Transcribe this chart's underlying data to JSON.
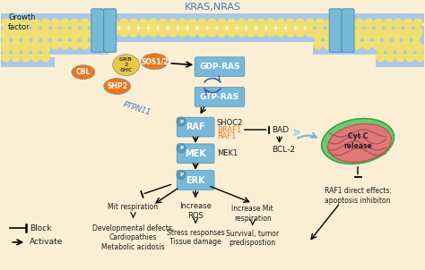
{
  "bg_color": "#faefd4",
  "membrane_color": "#a8c8e8",
  "membrane_yellow": "#f0e070",
  "box_blue": "#78b8d8",
  "orange_node": "#e87820",
  "yellow_node": "#e8c840",
  "text_blue": "#4472c4",
  "text_black": "#1a1a1a",
  "title": "KRAS,NRAS",
  "legend_block": "Block",
  "legend_activate": "Activate",
  "p_circle_color": "#5898b8",
  "mito_green": "#70c870",
  "mito_pink": "#e07878",
  "mito_green_dark": "#40a040",
  "mito_pink_dark": "#b05050",
  "bcl_connector": "#b8d4e8"
}
